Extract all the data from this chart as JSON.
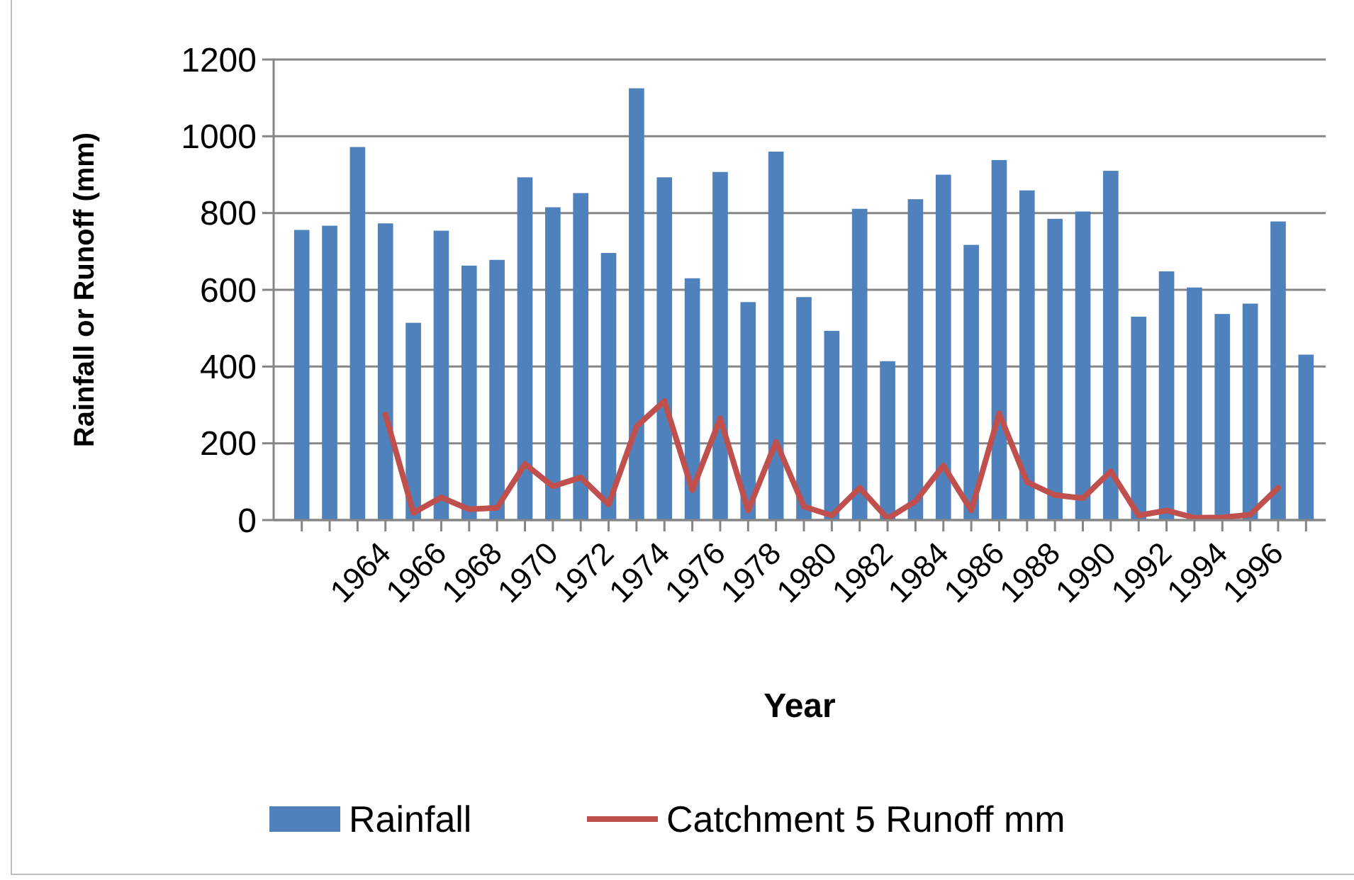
{
  "chart_data": {
    "type": "bar",
    "xlabel": "Year",
    "ylabel": "Rainfall or Runoff (mm)",
    "categories": [
      null,
      null,
      null,
      "1964",
      null,
      "1966",
      null,
      "1968",
      null,
      "1970",
      null,
      "1972",
      null,
      "1974",
      null,
      "1976",
      null,
      "1978",
      null,
      "1980",
      null,
      "1982",
      null,
      "1984",
      null,
      "1986",
      null,
      "1988",
      null,
      "1990",
      null,
      "1992",
      null,
      "1994",
      null,
      "1996",
      null
    ],
    "series": [
      {
        "name": "Rainfall",
        "color": "#4f81bd",
        "values": [
          756,
          767,
          972,
          773,
          514,
          754,
          663,
          678,
          893,
          815,
          852,
          696,
          1125,
          893,
          630,
          907,
          568,
          960,
          581,
          493,
          811,
          414,
          836,
          900,
          717,
          938,
          859,
          785,
          804,
          910,
          530,
          648,
          606,
          537,
          564,
          778,
          431
        ]
      },
      {
        "name": "Catchment 5 Runoff mm",
        "type": "line",
        "color": "#c0504d",
        "values": [
          null,
          null,
          null,
          275,
          19,
          59,
          28,
          32,
          146,
          88,
          111,
          41,
          244,
          310,
          78,
          265,
          25,
          204,
          35,
          12,
          84,
          4,
          49,
          142,
          25,
          278,
          99,
          65,
          57,
          127,
          12,
          25,
          6,
          7,
          14,
          84,
          null
        ]
      }
    ],
    "ylim": [
      0,
      1200
    ],
    "yticks": [
      0,
      200,
      400,
      600,
      800,
      1000,
      1200
    ],
    "grid": "y",
    "legend": "bottom",
    "marker": "none",
    "line_style": "solid"
  }
}
